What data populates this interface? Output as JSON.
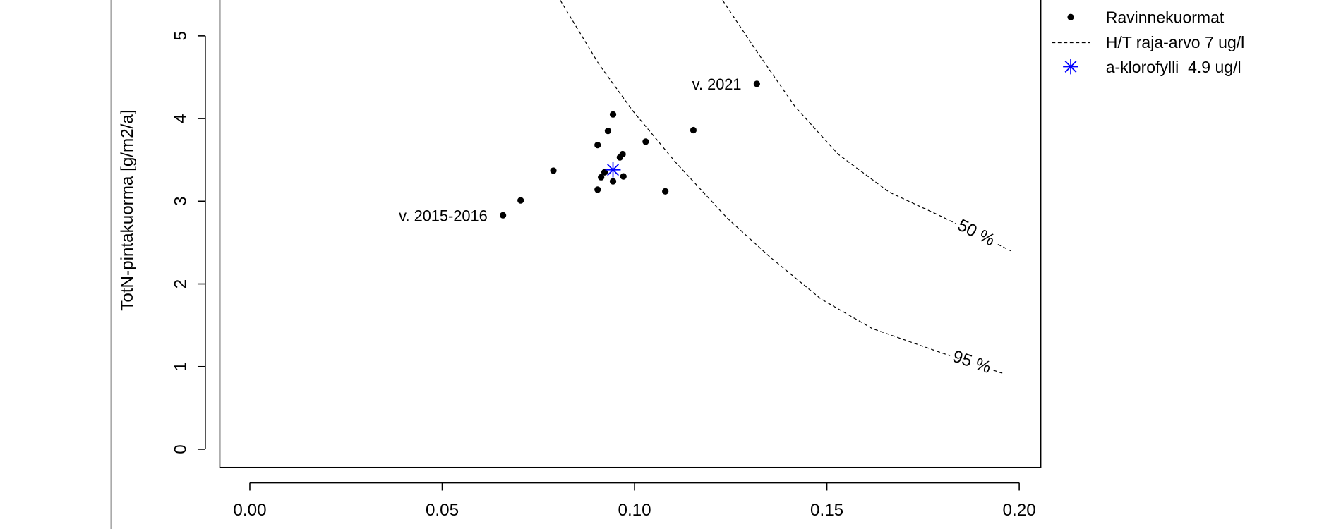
{
  "chart_data": {
    "type": "scatter",
    "y_label": "TotN-pintakuorma [g/m2/a]",
    "xlim": [
      -0.0078,
      0.2056
    ],
    "ylim": [
      -0.22,
      5.5
    ],
    "xticks": [
      {
        "value": 0,
        "label": "0.00"
      },
      {
        "value": 0.05,
        "label": "0.05"
      },
      {
        "value": 0.1,
        "label": "0.10"
      },
      {
        "value": 0.15,
        "label": "0.15"
      },
      {
        "value": 0.2,
        "label": "0.20"
      }
    ],
    "yticks": [
      0,
      1,
      2,
      3,
      4,
      5
    ],
    "series": [
      {
        "name": "Ravinnekuormat",
        "color": "#000000",
        "marker": "dot",
        "x": [
          0.0658,
          0.0704,
          0.0789,
          0.0904,
          0.0913,
          0.0922,
          0.0904,
          0.0931,
          0.0944,
          0.0944,
          0.0962,
          0.0969,
          0.0971,
          0.1029,
          0.108,
          0.1153,
          0.1318
        ],
        "values": [
          2.83,
          3.01,
          3.37,
          3.14,
          3.29,
          3.35,
          3.68,
          3.85,
          4.05,
          3.24,
          3.53,
          3.57,
          3.3,
          3.72,
          3.12,
          3.86,
          4.42
        ]
      },
      {
        "name": "a-klorofylli  4.9 ug/l",
        "color": "#0000ff",
        "marker": "star",
        "x": [
          0.0944
        ],
        "values": [
          3.38
        ]
      }
    ],
    "curve_legend": "H/T raja-arvo 7 ug/l",
    "curves": [
      {
        "label": "50 %",
        "x": [
          0.1229,
          0.1318,
          0.1418,
          0.1529,
          0.1662,
          0.1796,
          0.1978
        ],
        "values": [
          5.43,
          4.81,
          4.14,
          3.57,
          3.11,
          2.82,
          2.4
        ]
      },
      {
        "label": "95 %",
        "x": [
          0.0807,
          0.0907,
          0.0996,
          0.1107,
          0.124,
          0.1351,
          0.1484,
          0.1618,
          0.1796,
          0.1956
        ],
        "values": [
          5.43,
          4.66,
          4.09,
          3.47,
          2.8,
          2.33,
          1.82,
          1.46,
          1.17,
          0.92
        ]
      }
    ],
    "annotations": [
      "v. 2015-2016",
      "v. 2021"
    ]
  }
}
